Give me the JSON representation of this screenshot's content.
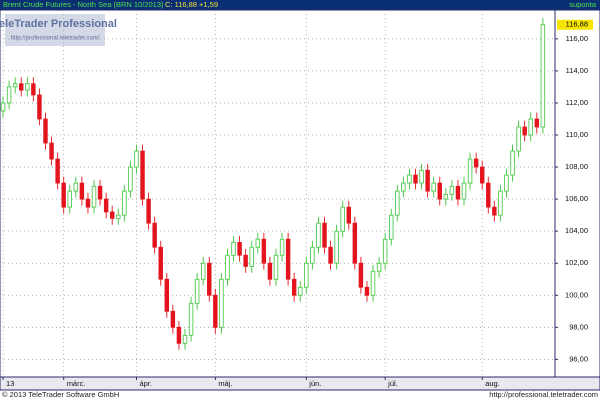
{
  "chart_data": {
    "type": "candlestick",
    "title": "Brent Crude Futures - North Sea (BRN 10/2013)",
    "last_quote": "C: 116,88 +1,59",
    "source": "suponta",
    "watermark": {
      "title": "TeleTrader Professional",
      "url": "http://professional.teletrader.com/"
    },
    "footer": {
      "copyright": "© 2013 TeleTrader Software GmbH",
      "url": "http://professional.teletrader.com"
    },
    "last_price": {
      "value": 116.88,
      "label": "116,88"
    },
    "up_color": "#3cc43c",
    "down_color": "#e3141e",
    "grid": true,
    "xlim": [
      -0.5,
      91
    ],
    "xticks": [
      {
        "value": 0,
        "label": "13"
      },
      {
        "value": 10,
        "label": "márc."
      },
      {
        "value": 22,
        "label": "ápr."
      },
      {
        "value": 35,
        "label": "máj."
      },
      {
        "value": 50,
        "label": "jún."
      },
      {
        "value": 63,
        "label": "júl."
      },
      {
        "value": 79,
        "label": "aug."
      }
    ],
    "ylim": [
      94.9,
      117.8
    ],
    "yticks": [
      {
        "value": 96,
        "label": "96,00"
      },
      {
        "value": 98,
        "label": "98,00"
      },
      {
        "value": 100,
        "label": "100,00"
      },
      {
        "value": 102,
        "label": "102,00"
      },
      {
        "value": 104,
        "label": "104,00"
      },
      {
        "value": 106,
        "label": "106,00"
      },
      {
        "value": 108,
        "label": "108,00"
      },
      {
        "value": 110,
        "label": "110,00"
      },
      {
        "value": 112,
        "label": "112,00"
      },
      {
        "value": 114,
        "label": "114,00"
      },
      {
        "value": 116,
        "label": "116,00"
      }
    ],
    "open": [
      111.5,
      112,
      113,
      113.2,
      112.8,
      113.2,
      112.5,
      111,
      109.5,
      108.5,
      107,
      105.5,
      106.5,
      107,
      106,
      105.5,
      106.8,
      106,
      105.2,
      104.8,
      105,
      106.5,
      108,
      109,
      106,
      104.5,
      103,
      101,
      99,
      98,
      97,
      97.5,
      99.5,
      101,
      102,
      100,
      98,
      101,
      102.5,
      103.3,
      102.5,
      101.8,
      103,
      103.5,
      102,
      101,
      102.5,
      103.5,
      101,
      100,
      100.5,
      102,
      103,
      104.5,
      103,
      102,
      104,
      105.5,
      104.5,
      102,
      100.5,
      100,
      101.5,
      102,
      103.5,
      105,
      106.5,
      107,
      107.5,
      107,
      107.8,
      106.5,
      107,
      106,
      106.3,
      106.8,
      106,
      107,
      108.5,
      108,
      107,
      105.5,
      105,
      106.5,
      107.5,
      109,
      110.5,
      110,
      111,
      110.5
    ],
    "high": [
      112.4,
      113.4,
      113.6,
      113.6,
      113.6,
      113.6,
      112.9,
      111.4,
      109.9,
      108.9,
      107.4,
      106.9,
      107.4,
      107.4,
      106.4,
      107.2,
      107.2,
      106.4,
      105.6,
      105.4,
      106.9,
      108.4,
      109.4,
      109.4,
      106.4,
      104.9,
      103.4,
      101.4,
      99.4,
      98.4,
      97.9,
      99.9,
      101.4,
      102.4,
      102.4,
      100.4,
      101.4,
      102.9,
      103.7,
      103.7,
      102.9,
      103.4,
      103.9,
      103.9,
      102.4,
      102.9,
      103.9,
      103.9,
      101.4,
      100.9,
      102.4,
      103.4,
      104.9,
      104.9,
      103.4,
      104.4,
      105.9,
      105.9,
      104.9,
      102.4,
      100.9,
      101.9,
      102.4,
      103.9,
      105.4,
      106.9,
      107.4,
      107.9,
      107.9,
      108.2,
      108.2,
      107.4,
      107.4,
      106.7,
      107.2,
      107.2,
      107.4,
      108.9,
      108.9,
      108.4,
      107.4,
      105.9,
      106.9,
      107.9,
      109.4,
      110.9,
      110.9,
      111.4,
      111.4,
      117.3
    ],
    "low": [
      111.1,
      111.6,
      112.6,
      112.4,
      112.4,
      112.1,
      110.6,
      109.1,
      108.1,
      106.6,
      105.1,
      105.1,
      106.1,
      105.6,
      105.1,
      105.1,
      105.6,
      104.8,
      104.4,
      104.4,
      104.6,
      106.1,
      107.6,
      105.6,
      104.1,
      102.6,
      100.6,
      98.6,
      97.6,
      96.6,
      96.6,
      97.1,
      99.1,
      100.6,
      99.6,
      97.6,
      97.6,
      100.6,
      102.1,
      102.1,
      101.4,
      101.4,
      102.6,
      101.6,
      100.6,
      100.6,
      102.1,
      100.6,
      99.6,
      99.6,
      100.1,
      101.6,
      102.6,
      102.6,
      101.6,
      101.6,
      103.6,
      104.1,
      101.6,
      100.1,
      99.6,
      99.6,
      101.1,
      101.6,
      103.1,
      104.6,
      106.1,
      106.6,
      106.6,
      106.6,
      106.1,
      106.1,
      105.6,
      105.6,
      105.9,
      105.6,
      105.6,
      106.6,
      107.6,
      106.6,
      105.1,
      104.6,
      104.6,
      106.1,
      107.1,
      108.6,
      109.6,
      109.6,
      110.1,
      110.1
    ],
    "close": [
      112,
      113,
      113.2,
      112.8,
      113.2,
      112.5,
      111,
      109.5,
      108.5,
      107,
      105.5,
      106.5,
      107,
      106,
      105.5,
      106.8,
      106,
      105.2,
      104.8,
      105,
      106.5,
      108,
      109,
      106,
      104.5,
      103,
      101,
      99,
      98,
      97,
      97.5,
      99.5,
      101,
      102,
      100,
      98,
      101,
      102.5,
      103.3,
      102.5,
      101.8,
      103,
      103.5,
      102,
      101,
      102.5,
      103.5,
      101,
      100,
      100.5,
      102,
      103,
      104.5,
      103,
      102,
      104,
      105.5,
      104.5,
      102,
      100.5,
      100,
      101.5,
      102,
      103.5,
      105,
      106.5,
      107,
      107.5,
      107,
      107.8,
      106.5,
      107,
      106,
      106.3,
      106.8,
      106,
      107,
      108.5,
      108,
      107,
      105.5,
      105,
      106.5,
      107.5,
      109,
      110.5,
      110,
      111,
      110.5,
      116.88
    ]
  }
}
